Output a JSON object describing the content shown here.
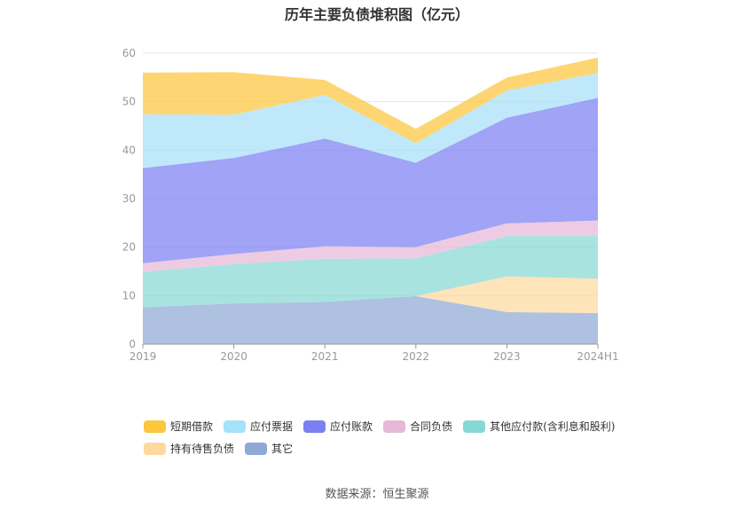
{
  "chart_data": {
    "type": "area",
    "stacked": true,
    "title": "历年主要负债堆积图（亿元）",
    "categories": [
      "2019",
      "2020",
      "2021",
      "2022",
      "2023",
      "2024H1"
    ],
    "ylim": [
      0,
      60
    ],
    "yticks": [
      0,
      10,
      20,
      30,
      40,
      50,
      60
    ],
    "grid": true,
    "legend_position": "bottom",
    "series": [
      {
        "name": "其它",
        "color": "#8fa9d6",
        "values": [
          7.6,
          8.4,
          8.7,
          9.9,
          6.6,
          6.4
        ]
      },
      {
        "name": "持有待售负债",
        "color": "#ffd89e",
        "values": [
          0,
          0,
          0,
          0,
          7.4,
          7.1
        ]
      },
      {
        "name": "其他应付款(含利息和股利)",
        "color": "#86d8d4",
        "values": [
          7.3,
          8.1,
          8.9,
          7.8,
          8.3,
          8.8
        ]
      },
      {
        "name": "合同负债",
        "color": "#e6b8d8",
        "values": [
          1.8,
          2.1,
          2.6,
          2.3,
          2.6,
          3.2
        ]
      },
      {
        "name": "应付账款",
        "color": "#7b7ff2",
        "values": [
          19.6,
          19.8,
          22.2,
          17.4,
          21.8,
          25.3
        ]
      },
      {
        "name": "应付票据",
        "color": "#a6e1fa",
        "values": [
          11.1,
          8.9,
          9.0,
          4.0,
          5.6,
          5.1
        ]
      },
      {
        "name": "短期借款",
        "color": "#fcc63d",
        "values": [
          8.6,
          8.8,
          3.1,
          3.0,
          2.7,
          3.2
        ]
      }
    ],
    "legend_order": [
      "短期借款",
      "应付票据",
      "应付账款",
      "合同负债",
      "其他应付款(含利息和股利)",
      "持有待售负债",
      "其它"
    ]
  },
  "source": "数据来源：恒生聚源"
}
